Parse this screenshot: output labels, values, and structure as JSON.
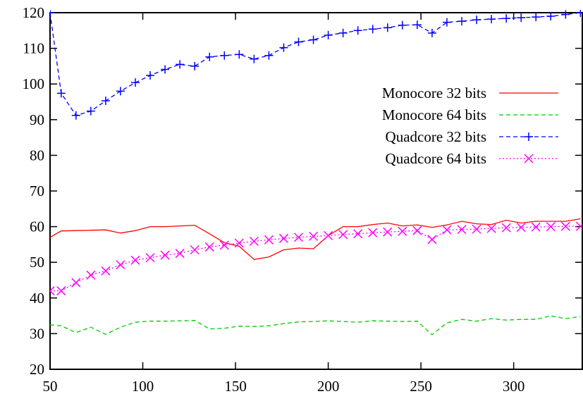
{
  "chart_data": {
    "type": "line",
    "title": "",
    "xlabel": "",
    "ylabel": "",
    "xlim": [
      50,
      337
    ],
    "ylim": [
      20,
      120
    ],
    "x_ticks": [
      50,
      100,
      150,
      200,
      250,
      300
    ],
    "y_ticks": [
      20,
      30,
      40,
      50,
      60,
      70,
      80,
      90,
      100,
      110,
      120
    ],
    "grid": false,
    "legend_position": "right-upper",
    "series": [
      {
        "name": "Monocore 32 bits",
        "color": "#ff0000",
        "dash": "solid",
        "marker": "none",
        "x": [
          50,
          56,
          64,
          72,
          80,
          88,
          96,
          104,
          112,
          120,
          128,
          136,
          144,
          152,
          160,
          168,
          176,
          184,
          192,
          200,
          208,
          216,
          224,
          232,
          240,
          248,
          256,
          264,
          272,
          280,
          288,
          296,
          304,
          312,
          320,
          328,
          336
        ],
        "y": [
          57,
          58.8,
          58.9,
          59,
          59.1,
          58.2,
          58.9,
          60,
          60,
          60.2,
          60.4,
          58,
          55.5,
          54.5,
          50.8,
          51.5,
          53.5,
          54,
          53.8,
          57.5,
          60,
          60,
          60.6,
          61,
          60.2,
          60.5,
          59.8,
          60.5,
          61.5,
          60.8,
          60.6,
          61.8,
          61,
          61.5,
          61.5,
          61.5,
          62.2
        ]
      },
      {
        "name": "Monocore 64 bits",
        "color": "#00cc00",
        "dash": "dashed",
        "marker": "none",
        "x": [
          50,
          56,
          64,
          72,
          80,
          88,
          96,
          104,
          112,
          120,
          128,
          136,
          144,
          152,
          160,
          168,
          176,
          184,
          192,
          200,
          208,
          216,
          224,
          232,
          240,
          248,
          256,
          264,
          272,
          280,
          288,
          296,
          304,
          312,
          320,
          328,
          336
        ],
        "y": [
          32.5,
          32.2,
          30.3,
          31.8,
          29.8,
          31.8,
          33.2,
          33.5,
          33.5,
          33.6,
          33.7,
          31.3,
          31.5,
          32.1,
          32,
          32.2,
          32.8,
          33.3,
          33.4,
          33.6,
          33.4,
          33.2,
          33.6,
          33.5,
          33.4,
          33.5,
          29.7,
          33,
          34,
          33.5,
          34.2,
          33.8,
          34,
          34,
          35,
          34.2,
          34.8
        ]
      },
      {
        "name": "Quadcore 32 bits",
        "color": "#0000ff",
        "dash": "dashed",
        "marker": "plus",
        "x": [
          50,
          56,
          64,
          72,
          80,
          88,
          96,
          104,
          112,
          120,
          128,
          136,
          144,
          152,
          160,
          168,
          176,
          184,
          192,
          200,
          208,
          216,
          224,
          232,
          240,
          248,
          256,
          264,
          272,
          280,
          288,
          296,
          304,
          312,
          320,
          328,
          336
        ],
        "y": [
          120,
          97.4,
          91.2,
          92.4,
          95.3,
          98,
          100.4,
          102.4,
          104.1,
          105.5,
          105,
          107.6,
          108,
          108.3,
          107,
          108,
          110.2,
          111.8,
          112.4,
          113.7,
          114.3,
          115,
          115.4,
          115.8,
          116.5,
          116.6,
          114.3,
          117.3,
          117.6,
          118,
          118.2,
          118.4,
          118.6,
          118.8,
          119,
          119.5,
          120
        ]
      },
      {
        "name": "Quadcore 64 bits",
        "color": "#ff00ff",
        "dash": "dotted",
        "marker": "cross",
        "x": [
          50,
          56,
          64,
          72,
          80,
          88,
          96,
          104,
          112,
          120,
          128,
          136,
          144,
          152,
          160,
          168,
          176,
          184,
          192,
          200,
          208,
          216,
          224,
          232,
          240,
          248,
          256,
          264,
          272,
          280,
          288,
          296,
          304,
          312,
          320,
          328,
          336
        ],
        "y": [
          42,
          42,
          44.3,
          46.4,
          47.6,
          49.3,
          50.6,
          51.3,
          52,
          52.5,
          53.5,
          54.3,
          54.8,
          55.4,
          55.9,
          56.3,
          56.7,
          57,
          57.3,
          57.5,
          57.8,
          58,
          58.3,
          58.5,
          58.7,
          58.9,
          56.4,
          59.1,
          59.2,
          59.3,
          59.5,
          59.7,
          59.8,
          59.9,
          60,
          60.1,
          60.1
        ]
      }
    ]
  }
}
